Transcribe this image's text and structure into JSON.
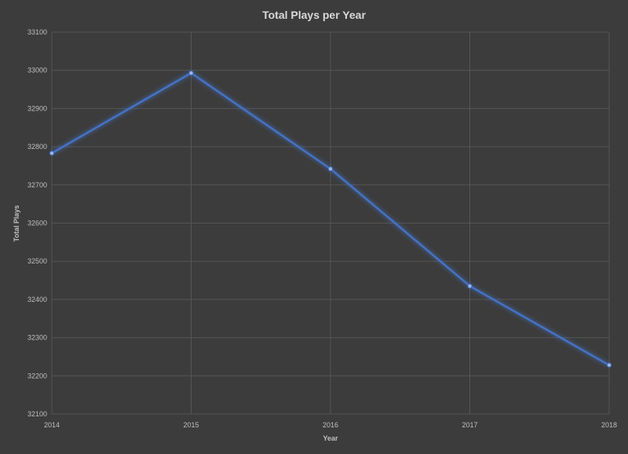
{
  "chart_data": {
    "type": "line",
    "title": "Total Plays per Year",
    "xlabel": "Year",
    "ylabel": "Total Plays",
    "categories": [
      "2014",
      "2015",
      "2016",
      "2017",
      "2018"
    ],
    "series": [
      {
        "values": [
          32783,
          32993,
          32742,
          32435,
          32228
        ]
      }
    ],
    "ylim": [
      32100,
      33100
    ],
    "yticks": [
      "32100",
      "32200",
      "32300",
      "32400",
      "32500",
      "32600",
      "32700",
      "32800",
      "32900",
      "33000",
      "33100"
    ],
    "grid": true,
    "legend": "none"
  },
  "colors": {
    "background": "#3c3c3c",
    "line": "#4472c4"
  }
}
